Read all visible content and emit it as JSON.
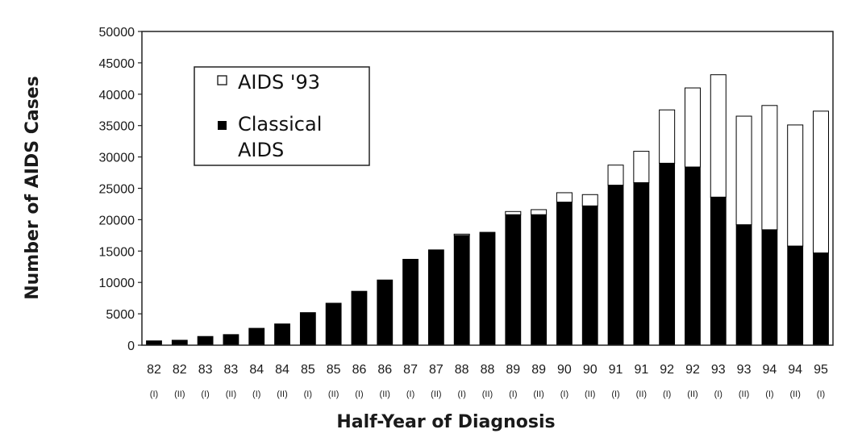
{
  "chart_data": {
    "type": "bar",
    "stacked": true,
    "xlabel": "Half-Year of Diagnosis",
    "ylabel": "Number of AIDS Cases",
    "ylim": [
      0,
      50000
    ],
    "yticks": [
      0,
      5000,
      10000,
      15000,
      20000,
      25000,
      30000,
      35000,
      40000,
      45000,
      50000
    ],
    "grid": false,
    "legend_position": "top-left",
    "categories": [
      {
        "year": "82",
        "half": "(I)"
      },
      {
        "year": "82",
        "half": "(II)"
      },
      {
        "year": "83",
        "half": "(I)"
      },
      {
        "year": "83",
        "half": "(II)"
      },
      {
        "year": "84",
        "half": "(I)"
      },
      {
        "year": "84",
        "half": "(II)"
      },
      {
        "year": "85",
        "half": "(I)"
      },
      {
        "year": "85",
        "half": "(II)"
      },
      {
        "year": "86",
        "half": "(I)"
      },
      {
        "year": "86",
        "half": "(II)"
      },
      {
        "year": "87",
        "half": "(I)"
      },
      {
        "year": "87",
        "half": "(II)"
      },
      {
        "year": "88",
        "half": "(I)"
      },
      {
        "year": "88",
        "half": "(II)"
      },
      {
        "year": "89",
        "half": "(I)"
      },
      {
        "year": "89",
        "half": "(II)"
      },
      {
        "year": "90",
        "half": "(I)"
      },
      {
        "year": "90",
        "half": "(II)"
      },
      {
        "year": "91",
        "half": "(I)"
      },
      {
        "year": "91",
        "half": "(II)"
      },
      {
        "year": "92",
        "half": "(I)"
      },
      {
        "year": "92",
        "half": "(II)"
      },
      {
        "year": "93",
        "half": "(I)"
      },
      {
        "year": "93",
        "half": "(II)"
      },
      {
        "year": "94",
        "half": "(I)"
      },
      {
        "year": "94",
        "half": "(II)"
      },
      {
        "year": "95",
        "half": "(I)"
      }
    ],
    "series": [
      {
        "name": "Classical AIDS",
        "legend_lines": [
          "Classical",
          "AIDS"
        ],
        "legend_marker": "■",
        "color": "#000000",
        "values": [
          700,
          800,
          1400,
          1700,
          2700,
          3400,
          5200,
          6700,
          8600,
          10400,
          13700,
          15200,
          17500,
          18000,
          20800,
          20800,
          22800,
          22200,
          25500,
          25900,
          29000,
          28400,
          23600,
          19200,
          18400,
          15800,
          14700
        ]
      },
      {
        "name": "AIDS '93",
        "legend_lines": [
          "AIDS '93"
        ],
        "legend_marker": "❐",
        "color": "#ffffff",
        "values": [
          0,
          0,
          0,
          0,
          0,
          0,
          0,
          0,
          0,
          0,
          0,
          0,
          200,
          0,
          500,
          800,
          1500,
          1800,
          3200,
          5000,
          8500,
          12600,
          19500,
          17300,
          19800,
          19300,
          22600
        ]
      }
    ]
  }
}
